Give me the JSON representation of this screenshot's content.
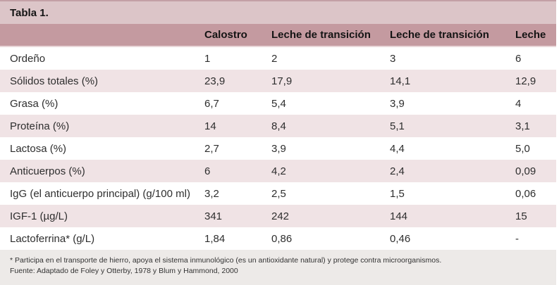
{
  "table": {
    "title": "Tabla 1.",
    "columns": [
      "Calostro",
      "Leche de transición",
      "Leche de transición",
      "Leche"
    ],
    "rows": [
      {
        "label": "Ordeño",
        "values": [
          "1",
          "2",
          "3",
          "6"
        ]
      },
      {
        "label": "Sólidos totales (%)",
        "values": [
          "23,9",
          "17,9",
          "14,1",
          "12,9"
        ]
      },
      {
        "label": "Grasa (%)",
        "values": [
          "6,7",
          "5,4",
          "3,9",
          "4"
        ]
      },
      {
        "label": "Proteína (%)",
        "values": [
          "14",
          "8,4",
          "5,1",
          "3,1"
        ]
      },
      {
        "label": "Lactosa (%)",
        "values": [
          "2,7",
          "3,9",
          "4,4",
          "5,0"
        ]
      },
      {
        "label": "Anticuerpos (%)",
        "values": [
          "6",
          "4,2",
          "2,4",
          "0,09"
        ]
      },
      {
        "label": "IgG (el anticuerpo principal) (g/100 ml)",
        "values": [
          "3,2",
          "2,5",
          "1,5",
          "0,06"
        ]
      },
      {
        "label": "IGF-1 (µg/L)",
        "values": [
          "341",
          "242",
          "144",
          "15"
        ]
      },
      {
        "label": "Lactoferrina* (g/L)",
        "values": [
          "1,84",
          "0,86",
          "0,46",
          "-"
        ]
      }
    ],
    "footnotes": [
      "* Participa en el transporte de hierro, apoya el sistema inmunológico (es un antioxidante natural) y protege contra microorganismos.",
      "Fuente: Adaptado de Foley y Otterby, 1978 y Blum y Hammond, 2000"
    ]
  },
  "colors": {
    "title_bar_bg": "#dcc5c8",
    "header_bg": "#c49aa0",
    "alt_row_bg": "#f0e3e5",
    "footer_bg": "#edeae8",
    "top_border": "#c3a0a6"
  }
}
